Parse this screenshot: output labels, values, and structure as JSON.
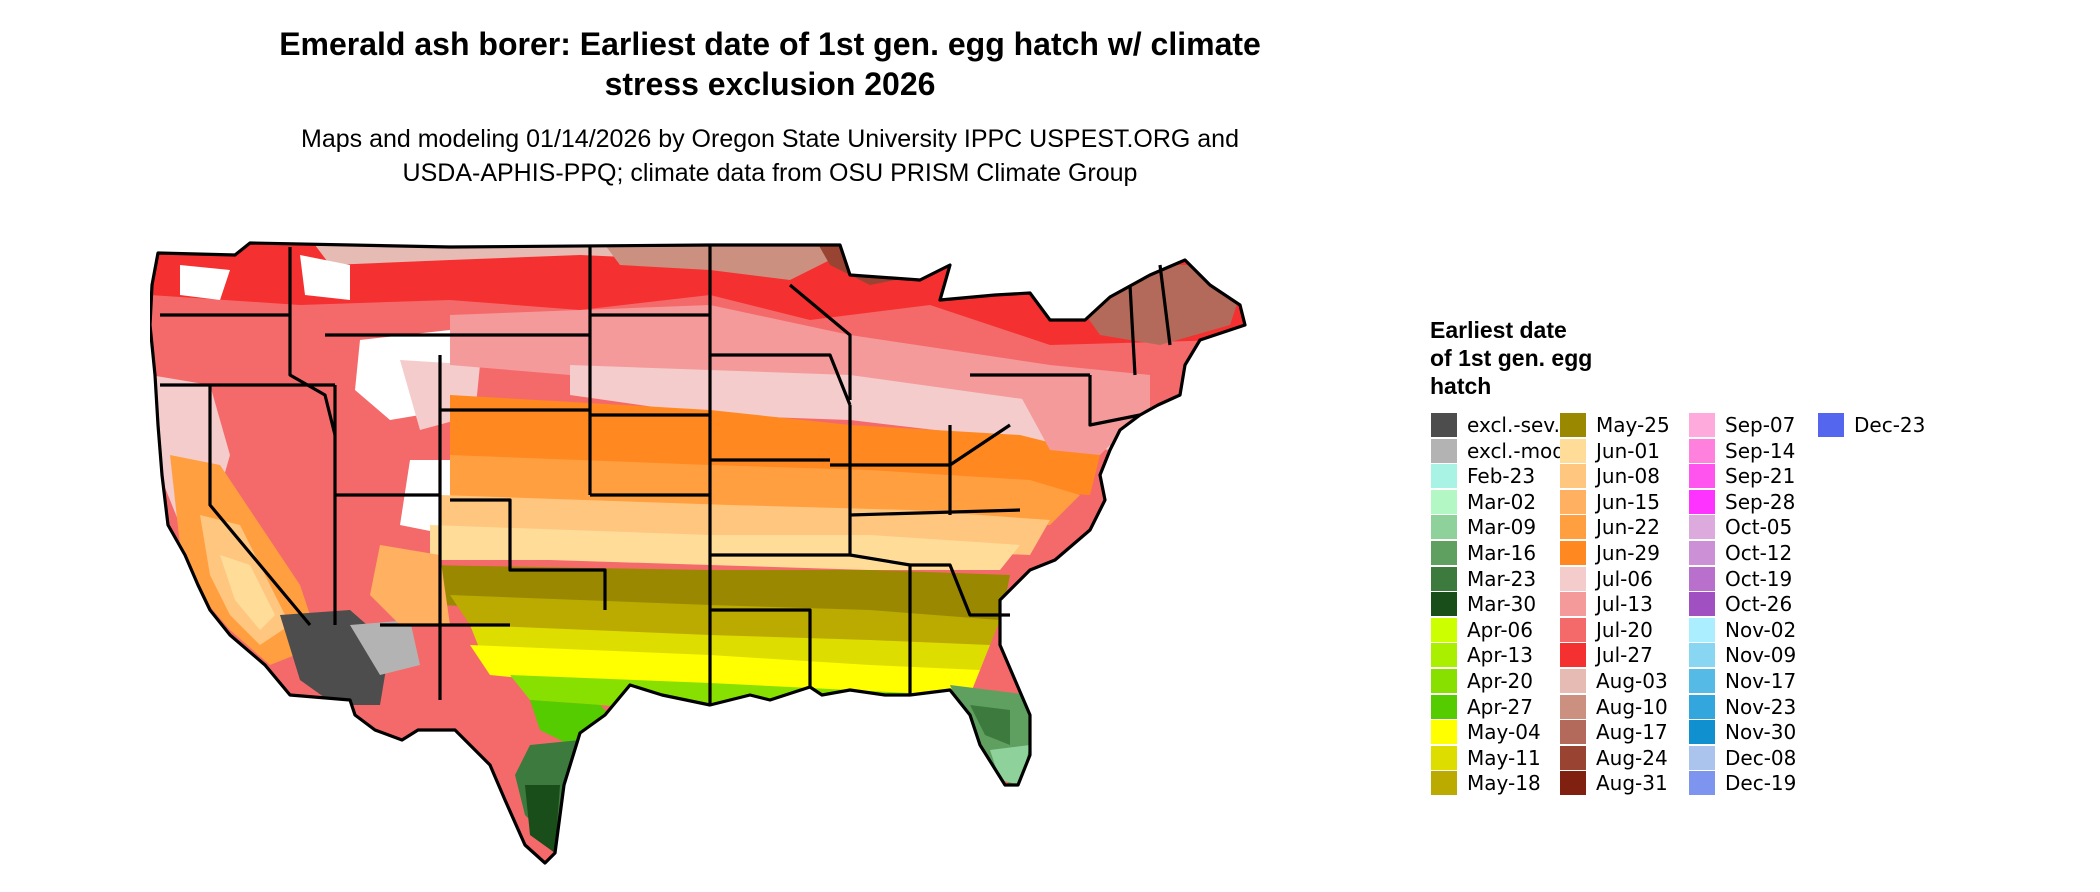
{
  "title_line1": "Emerald ash borer: Earliest date of 1st gen. egg hatch w/ climate",
  "title_line2": "stress exclusion 2026",
  "subtitle_line1": "Maps and modeling 01/14/2026 by Oregon State University IPPC USPEST.ORG and",
  "subtitle_line2": "USDA-APHIS-PPQ; climate data from OSU PRISM Climate Group",
  "legend": {
    "title_line1": "Earliest date",
    "title_line2": "of 1st gen. egg",
    "title_line3": "hatch",
    "items": [
      {
        "label": "excl.-sev.",
        "color": "#4d4d4d"
      },
      {
        "label": "excl.-mod.",
        "color": "#b3b3b3"
      },
      {
        "label": "Feb-23",
        "color": "#a8f3e4"
      },
      {
        "label": "Mar-02",
        "color": "#b3f7c4"
      },
      {
        "label": "Mar-09",
        "color": "#8fd19a"
      },
      {
        "label": "Mar-16",
        "color": "#5fa060"
      },
      {
        "label": "Mar-23",
        "color": "#3d7a3e"
      },
      {
        "label": "Mar-30",
        "color": "#194d19"
      },
      {
        "label": "Apr-06",
        "color": "#ccff00"
      },
      {
        "label": "Apr-13",
        "color": "#aaee00"
      },
      {
        "label": "Apr-20",
        "color": "#88e000"
      },
      {
        "label": "Apr-27",
        "color": "#55cc00"
      },
      {
        "label": "May-04",
        "color": "#ffff00"
      },
      {
        "label": "May-11",
        "color": "#dddd00"
      },
      {
        "label": "May-18",
        "color": "#bbaa00"
      },
      {
        "label": "May-25",
        "color": "#998800"
      },
      {
        "label": "Jun-01",
        "color": "#ffdd99"
      },
      {
        "label": "Jun-08",
        "color": "#ffc680"
      },
      {
        "label": "Jun-15",
        "color": "#ffb060"
      },
      {
        "label": "Jun-22",
        "color": "#ff9f40"
      },
      {
        "label": "Jun-29",
        "color": "#ff8820"
      },
      {
        "label": "Jul-06",
        "color": "#f4cccc"
      },
      {
        "label": "Jul-13",
        "color": "#f49a9a"
      },
      {
        "label": "Jul-20",
        "color": "#f46a6a"
      },
      {
        "label": "Jul-27",
        "color": "#f53030"
      },
      {
        "label": "Aug-03",
        "color": "#e6bbb3"
      },
      {
        "label": "Aug-10",
        "color": "#cc9080"
      },
      {
        "label": "Aug-17",
        "color": "#b36a5a"
      },
      {
        "label": "Aug-24",
        "color": "#994433"
      },
      {
        "label": "Aug-31",
        "color": "#802010"
      },
      {
        "label": "Sep-07",
        "color": "#ffaadd"
      },
      {
        "label": "Sep-14",
        "color": "#ff80dd"
      },
      {
        "label": "Sep-21",
        "color": "#ff55ee"
      },
      {
        "label": "Sep-28",
        "color": "#ff33ff"
      },
      {
        "label": "Oct-05",
        "color": "#ddaadd"
      },
      {
        "label": "Oct-12",
        "color": "#cc90d6"
      },
      {
        "label": "Oct-19",
        "color": "#b870cc"
      },
      {
        "label": "Oct-26",
        "color": "#a050c0"
      },
      {
        "label": "Nov-02",
        "color": "#aaeeff"
      },
      {
        "label": "Nov-09",
        "color": "#88d6f2"
      },
      {
        "label": "Nov-17",
        "color": "#55bbe6"
      },
      {
        "label": "Nov-23",
        "color": "#33a6dd"
      },
      {
        "label": "Nov-30",
        "color": "#1190d0"
      },
      {
        "label": "Dec-08",
        "color": "#aac4ee"
      },
      {
        "label": "Dec-19",
        "color": "#7d95ee"
      },
      {
        "label": "Dec-23",
        "color": "#5566ee"
      }
    ]
  }
}
